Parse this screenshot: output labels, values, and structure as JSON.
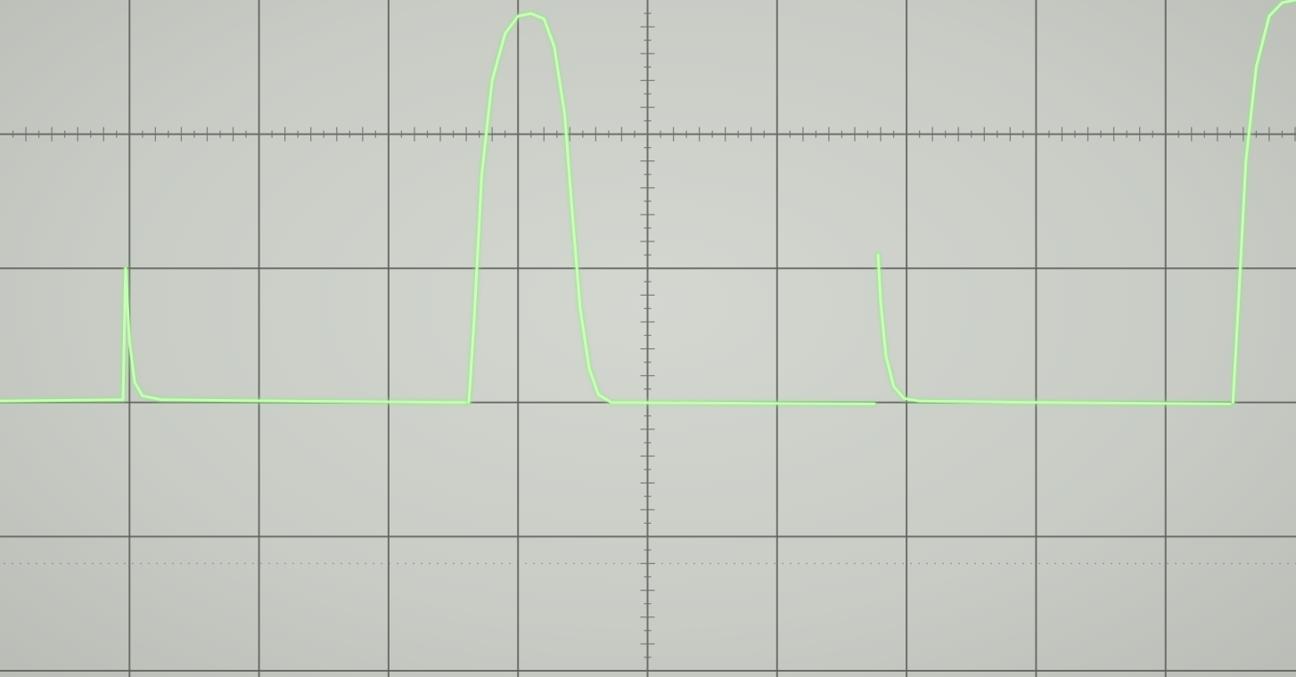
{
  "screen": {
    "trace_color": "#8cf07a",
    "trace_glow": "#c9ffb8",
    "graticule_color": "#5d605a",
    "minor_tick_color": "#6e716b",
    "background_color": "#c9cdc6"
  },
  "graticule": {
    "horizontal_divisions": 10,
    "vertical_divisions": 5,
    "minor_ticks_per_division": 5
  },
  "chart_data": {
    "type": "line",
    "title": "",
    "xlabel": "",
    "ylabel": "",
    "grid": true,
    "x_range_div": [
      0,
      10
    ],
    "y_range_div": [
      -2,
      3
    ],
    "series": [
      {
        "segments": [
          [
            [
              0.0,
              0.01
            ],
            [
              0.95,
              0.02
            ],
            [
              0.97,
              1.0
            ],
            [
              1.0,
              0.45
            ],
            [
              1.04,
              0.15
            ],
            [
              1.1,
              0.05
            ],
            [
              1.25,
              0.02
            ],
            [
              2.2,
              0.01
            ],
            [
              3.6,
              0.0
            ]
          ],
          [
            [
              3.62,
              0.0
            ],
            [
              3.66,
              0.6
            ],
            [
              3.72,
              1.7
            ],
            [
              3.8,
              2.4
            ],
            [
              3.9,
              2.75
            ],
            [
              4.0,
              2.88
            ],
            [
              4.1,
              2.9
            ],
            [
              4.2,
              2.86
            ],
            [
              4.28,
              2.65
            ],
            [
              4.36,
              2.15
            ],
            [
              4.42,
              1.4
            ],
            [
              4.48,
              0.7
            ],
            [
              4.55,
              0.25
            ],
            [
              4.62,
              0.06
            ],
            [
              4.72,
              0.0
            ],
            [
              6.75,
              -0.01
            ]
          ],
          [
            [
              6.78,
              1.1
            ],
            [
              6.8,
              0.75
            ],
            [
              6.84,
              0.35
            ],
            [
              6.9,
              0.12
            ],
            [
              6.98,
              0.03
            ],
            [
              7.1,
              0.01
            ],
            [
              8.0,
              0.0
            ],
            [
              9.5,
              -0.01
            ]
          ],
          [
            [
              9.52,
              0.0
            ],
            [
              9.56,
              0.7
            ],
            [
              9.62,
              1.8
            ],
            [
              9.7,
              2.5
            ],
            [
              9.8,
              2.88
            ],
            [
              9.9,
              2.98
            ],
            [
              10.0,
              3.0
            ]
          ]
        ]
      }
    ]
  }
}
